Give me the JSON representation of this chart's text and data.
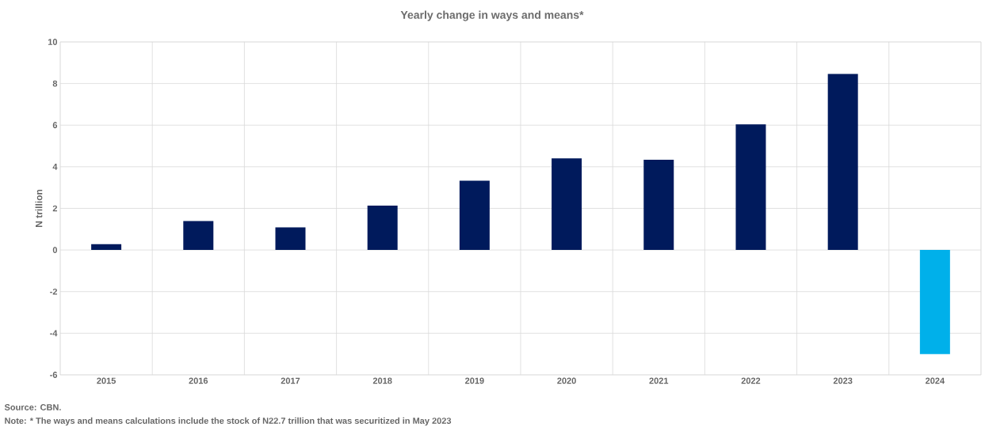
{
  "chart_data": {
    "type": "bar",
    "title": "Yearly change in ways and means*",
    "ylabel": "N trillion",
    "categories": [
      "2015",
      "2016",
      "2017",
      "2018",
      "2019",
      "2020",
      "2021",
      "2022",
      "2023",
      "2024"
    ],
    "values": [
      0.28,
      1.39,
      1.09,
      2.13,
      3.33,
      4.4,
      4.34,
      6.04,
      8.46,
      -5.0
    ],
    "colors": [
      "#001a5c",
      "#001a5c",
      "#001a5c",
      "#001a5c",
      "#001a5c",
      "#001a5c",
      "#001a5c",
      "#001a5c",
      "#001a5c",
      "#00b0ea"
    ],
    "ylim": [
      -6,
      10
    ],
    "yticks": [
      -6,
      -4,
      -2,
      0,
      2,
      4,
      6,
      8,
      10
    ],
    "grid": true,
    "annotations": [
      "Source: CBN.",
      "Note: * The ways and means calculations include the stock of N22.7 trillion that was securitized in May 2023"
    ]
  }
}
